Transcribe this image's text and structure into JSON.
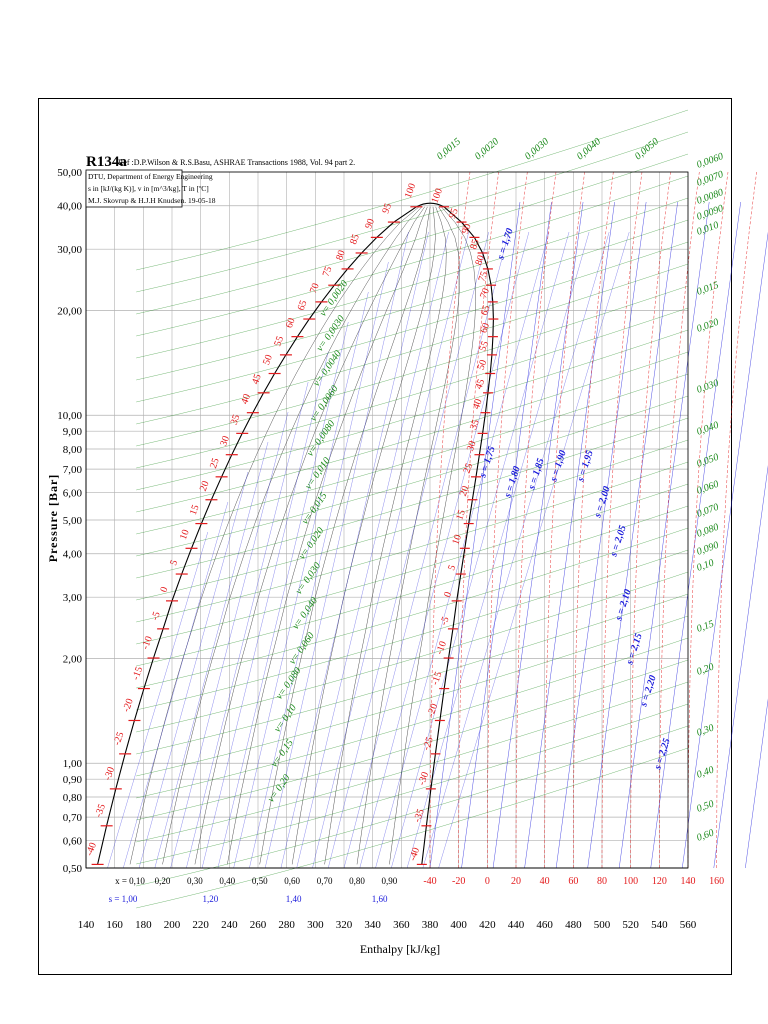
{
  "header": {
    "title": "R134a",
    "reference": "Ref :D.P.Wilson & R.S.Basu, ASHRAE Transactions 1988, Vol. 94 part 2.",
    "info_lines": [
      "DTU, Department of Energy Engineering",
      "s in [kJ/(kg K)], v in [m^3/kg], T in [ºC]",
      "M.J. Skovrup & H.J.H Knudsen. 19-05-18"
    ]
  },
  "colors": {
    "temperature": "#e31a1c",
    "volume": "#1b8a1b",
    "entropy": "#1a1adb",
    "grid": "#b0b0b0",
    "saturation": "#000000"
  },
  "chart_data": {
    "type": "line",
    "xlabel": "Enthalpy [kJ/kg]",
    "ylabel": "Pressure [Bar]",
    "xlim": [
      140,
      560
    ],
    "ylim": [
      0.5,
      50
    ],
    "yscale": "log",
    "grid": true,
    "x_ticks": [
      "140",
      "160",
      "180",
      "200",
      "220",
      "240",
      "260",
      "280",
      "300",
      "320",
      "340",
      "360",
      "380",
      "400",
      "420",
      "440",
      "460",
      "480",
      "500",
      "520",
      "540",
      "560"
    ],
    "y_ticks": [
      "0,50",
      "0,60",
      "0,70",
      "0,80",
      "0,90",
      "1,00",
      "2,00",
      "3,00",
      "4,00",
      "5,00",
      "6,00",
      "7,00",
      "8,00",
      "9,00",
      "10,00",
      "20,00",
      "30,00",
      "40,00",
      "50,00"
    ],
    "quality_labels": [
      "x = 0,10",
      "0,20",
      "0,30",
      "0,40",
      "0,50",
      "0,60",
      "0,70",
      "0,80",
      "0,90"
    ],
    "entropy_bottom_labels": [
      "s = 1,00",
      "1,20",
      "1,40",
      "1,60"
    ],
    "sat_temperatures_left": [
      "-40",
      "-35",
      "-30",
      "-25",
      "-20",
      "-15",
      "-10",
      "-5",
      "0",
      "5",
      "10",
      "15",
      "20",
      "25",
      "30",
      "35",
      "40",
      "45",
      "50",
      "55",
      "60",
      "65",
      "70",
      "75",
      "80",
      "85",
      "90",
      "95",
      "100"
    ],
    "sat_temperatures_right": [
      "100",
      "95",
      "90",
      "85",
      "80",
      "75",
      "70",
      "65",
      "60",
      "55",
      "50",
      "45",
      "40",
      "35",
      "30",
      "25",
      "20",
      "15",
      "10",
      "5",
      "0",
      "-5",
      "-10",
      "-15",
      "-20",
      "-25",
      "-30",
      "-35",
      "-40"
    ],
    "vapor_temperature_ticks": [
      "-40",
      "-20",
      "0",
      "20",
      "40",
      "60",
      "80",
      "100",
      "120",
      "140",
      "160"
    ],
    "volume_labels_dome": [
      "v= 0,0020",
      "v= 0,0030",
      "v= 0,0040",
      "v= 0,0060",
      "v= 0,0080",
      "v= 0,010",
      "v= 0,015",
      "v= 0,020",
      "v= 0,030",
      "v= 0,040",
      "v= 0,060",
      "v= 0,080",
      "v= 0,10",
      "v= 0,15",
      "v= 0,20"
    ],
    "volume_labels_top": [
      "0,0015",
      "0,0020",
      "0,0030",
      "0,0040",
      "0,0050"
    ],
    "volume_labels_right": [
      "0,0060",
      "0,0070",
      "0,0080",
      "0,0090",
      "0,010",
      "0,015",
      "0,020",
      "0,030",
      "0,040",
      "0,050",
      "0,060",
      "0,070",
      "0,080",
      "0,090",
      "0,10",
      "0,15",
      "0,20",
      "0,30",
      "0,40",
      "0,50",
      "0,60"
    ],
    "entropy_labels_vapor": [
      "s = 1,70",
      "s = 1,75",
      "s = 1,80",
      "s = 1,85",
      "s = 1,90",
      "s = 1,95",
      "s = 2,00",
      "s = 2,05",
      "s = 2,10",
      "s = 2,15",
      "s = 2,20",
      "s = 2,25"
    ],
    "saturation_dome": {
      "liquid": [
        [
          148.1,
          0.512
        ],
        [
          154.4,
          0.661
        ],
        [
          160.8,
          0.844
        ],
        [
          167.3,
          1.064
        ],
        [
          173.8,
          1.327
        ],
        [
          180.4,
          1.639
        ],
        [
          187.1,
          2.006
        ],
        [
          193.8,
          2.433
        ],
        [
          200.0,
          2.928
        ],
        [
          206.8,
          3.497
        ],
        [
          213.6,
          4.146
        ],
        [
          220.5,
          4.883
        ],
        [
          227.5,
          5.717
        ],
        [
          234.6,
          6.653
        ],
        [
          241.7,
          7.702
        ],
        [
          249.0,
          8.87
        ],
        [
          256.4,
          10.17
        ],
        [
          263.9,
          11.6
        ],
        [
          271.6,
          13.18
        ],
        [
          279.5,
          14.91
        ],
        [
          287.5,
          16.82
        ],
        [
          295.8,
          18.9
        ],
        [
          304.3,
          21.17
        ],
        [
          313.2,
          23.64
        ],
        [
          322.5,
          26.33
        ],
        [
          332.3,
          29.26
        ],
        [
          342.9,
          32.44
        ],
        [
          354.8,
          35.9
        ],
        [
          370.5,
          39.72
        ]
      ],
      "vapor": [
        [
          374.3,
          0.512
        ],
        [
          377.5,
          0.661
        ],
        [
          380.6,
          0.844
        ],
        [
          383.8,
          1.064
        ],
        [
          386.9,
          1.327
        ],
        [
          389.9,
          1.639
        ],
        [
          393.0,
          2.006
        ],
        [
          396.0,
          2.433
        ],
        [
          398.6,
          2.928
        ],
        [
          401.5,
          3.497
        ],
        [
          404.3,
          4.146
        ],
        [
          407.0,
          4.883
        ],
        [
          409.6,
          5.717
        ],
        [
          412.1,
          6.653
        ],
        [
          414.5,
          7.702
        ],
        [
          416.7,
          8.87
        ],
        [
          418.7,
          10.17
        ],
        [
          420.5,
          11.6
        ],
        [
          422.0,
          13.18
        ],
        [
          423.2,
          14.91
        ],
        [
          423.9,
          16.82
        ],
        [
          424.2,
          18.9
        ],
        [
          423.8,
          21.17
        ],
        [
          422.6,
          23.64
        ],
        [
          420.4,
          26.33
        ],
        [
          416.7,
          29.26
        ],
        [
          411.0,
          32.44
        ],
        [
          402.0,
          35.9
        ],
        [
          389.8,
          39.72
        ]
      ]
    }
  }
}
